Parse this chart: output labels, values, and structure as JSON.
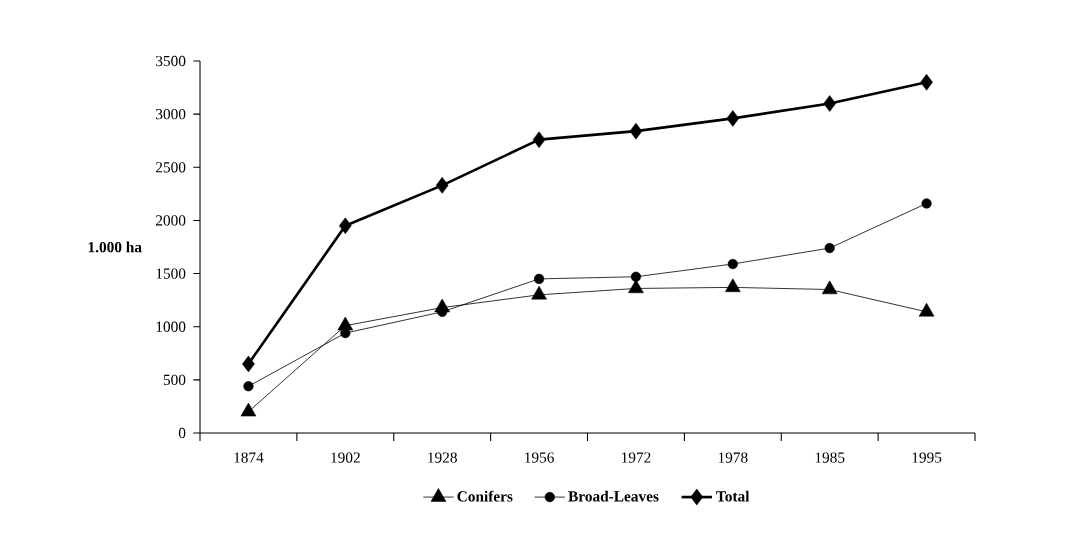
{
  "chart_data": {
    "type": "line",
    "ylabel": "1.000 ha",
    "categories": [
      "1874",
      "1902",
      "1928",
      "1956",
      "1972",
      "1978",
      "1985",
      "1995"
    ],
    "series": [
      {
        "name": "Conifers",
        "color": "#000000",
        "marker": "triangle",
        "values": [
          200,
          1010,
          1180,
          1300,
          1360,
          1370,
          1350,
          1140
        ]
      },
      {
        "name": "Broad-Leaves",
        "color": "#000000",
        "marker": "circle",
        "values": [
          440,
          940,
          1140,
          1450,
          1470,
          1590,
          1740,
          2160
        ]
      },
      {
        "name": "Total",
        "color": "#000000",
        "marker": "diamond",
        "values": [
          650,
          1950,
          2330,
          2760,
          2840,
          2960,
          3100,
          3300
        ]
      }
    ],
    "ylim": [
      0,
      3500
    ],
    "yticks": [
      0,
      500,
      1000,
      1500,
      2000,
      2500,
      3000,
      3500
    ],
    "grid": false,
    "legend": "bottom"
  }
}
